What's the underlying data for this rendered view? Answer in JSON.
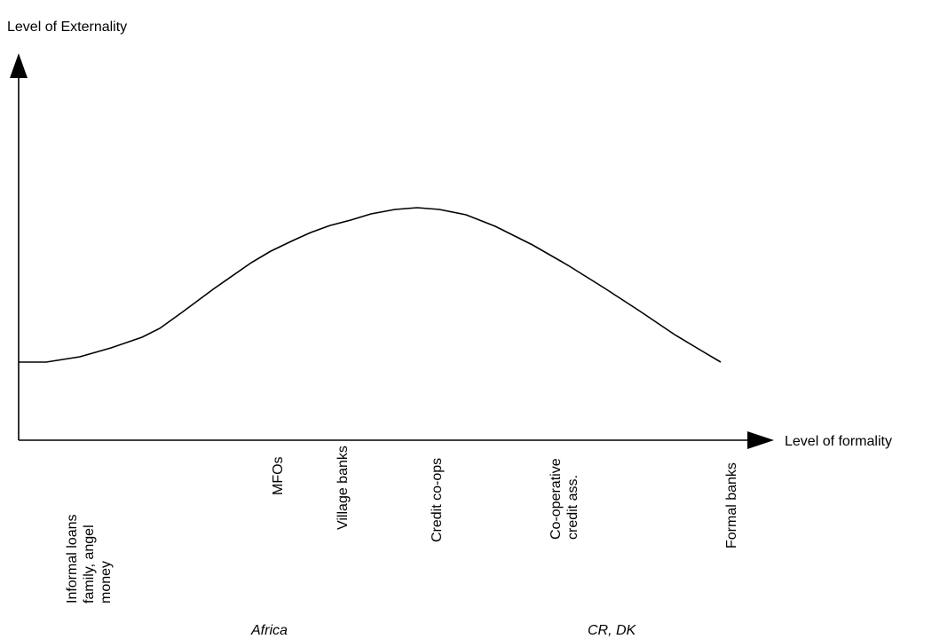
{
  "y_axis_label": "Level of Externality",
  "x_axis_label": "Level of formality",
  "categories": [
    {
      "lines": [
        "Informal loans",
        "family, angel",
        "money"
      ]
    },
    {
      "lines": [
        "MFOs"
      ]
    },
    {
      "lines": [
        "Village banks"
      ]
    },
    {
      "lines": [
        "Credit co-ops"
      ]
    },
    {
      "lines": [
        "Co-operative",
        "credit ass."
      ]
    },
    {
      "lines": [
        "Formal banks"
      ]
    }
  ],
  "regions": {
    "left": "Africa",
    "right": "CR, DK"
  },
  "curve_shape": "rising then falling (hump peaking near credit co-ops)",
  "colors": {
    "line": "#000000",
    "background": "#ffffff"
  }
}
